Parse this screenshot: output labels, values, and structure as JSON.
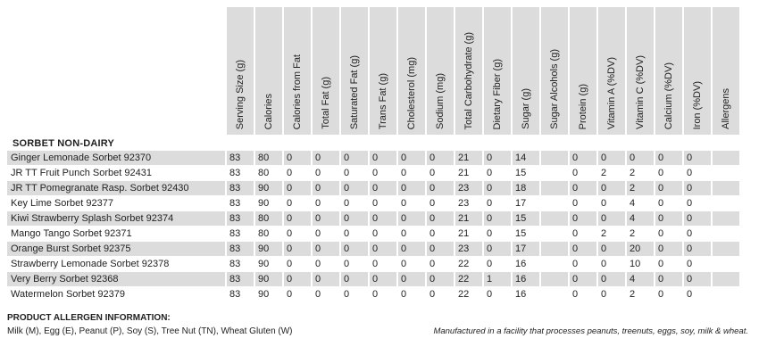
{
  "columns": [
    "Serving Size (g)",
    "Calories",
    "Calories from Fat",
    "Total Fat (g)",
    "Saturated Fat (g)",
    "Trans Fat (g)",
    "Cholesterol (mg)",
    "Sodium (mg)",
    "Total Carbohydrate (g)",
    "Dietary Fiber (g)",
    "Sugar (g)",
    "Sugar Alcohols (g)",
    "Protein (g)",
    "Vitamin A (%DV)",
    "Vitamin C (%DV)",
    "Calcium (%DV)",
    "Iron (%DV)",
    "Allergens"
  ],
  "section_title": "SORBET NON-DAIRY",
  "rows": [
    {
      "name": "Ginger Lemonade Sorbet  92370",
      "values": [
        "83",
        "80",
        "0",
        "0",
        "0",
        "0",
        "0",
        "0",
        "21",
        "0",
        "14",
        "",
        "0",
        "0",
        "0",
        "0",
        "0",
        ""
      ]
    },
    {
      "name": "JR TT Fruit Punch Sorbet  92431",
      "values": [
        "83",
        "80",
        "0",
        "0",
        "0",
        "0",
        "0",
        "0",
        "21",
        "0",
        "15",
        "",
        "0",
        "2",
        "2",
        "0",
        "0",
        ""
      ]
    },
    {
      "name": "JR TT Pomegranate Rasp. Sorbet  92430",
      "values": [
        "83",
        "90",
        "0",
        "0",
        "0",
        "0",
        "0",
        "0",
        "23",
        "0",
        "18",
        "",
        "0",
        "0",
        "2",
        "0",
        "0",
        ""
      ]
    },
    {
      "name": "Key Lime Sorbet 92377",
      "values": [
        "83",
        "90",
        "0",
        "0",
        "0",
        "0",
        "0",
        "0",
        "23",
        "0",
        "17",
        "",
        "0",
        "0",
        "4",
        "0",
        "0",
        ""
      ]
    },
    {
      "name": "Kiwi Strawberry Splash Sorbet 92374",
      "values": [
        "83",
        "80",
        "0",
        "0",
        "0",
        "0",
        "0",
        "0",
        "21",
        "0",
        "15",
        "",
        "0",
        "0",
        "4",
        "0",
        "0",
        ""
      ]
    },
    {
      "name": "Mango Tango Sorbet 92371",
      "values": [
        "83",
        "80",
        "0",
        "0",
        "0",
        "0",
        "0",
        "0",
        "21",
        "0",
        "15",
        "",
        "0",
        "2",
        "2",
        "0",
        "0",
        ""
      ]
    },
    {
      "name": "Orange Burst Sorbet 92375",
      "values": [
        "83",
        "90",
        "0",
        "0",
        "0",
        "0",
        "0",
        "0",
        "23",
        "0",
        "17",
        "",
        "0",
        "0",
        "20",
        "0",
        "0",
        ""
      ]
    },
    {
      "name": "Strawberry Lemonade Sorbet 92378",
      "values": [
        "83",
        "90",
        "0",
        "0",
        "0",
        "0",
        "0",
        "0",
        "22",
        "0",
        "16",
        "",
        "0",
        "0",
        "10",
        "0",
        "0",
        ""
      ]
    },
    {
      "name": "Very Berry Sorbet 92368",
      "values": [
        "83",
        "90",
        "0",
        "0",
        "0",
        "0",
        "0",
        "0",
        "22",
        "1",
        "16",
        "",
        "0",
        "0",
        "4",
        "0",
        "0",
        ""
      ]
    },
    {
      "name": "Watermelon Sorbet 92379",
      "values": [
        "83",
        "90",
        "0",
        "0",
        "0",
        "0",
        "0",
        "0",
        "22",
        "0",
        "16",
        "",
        "0",
        "0",
        "2",
        "0",
        "0",
        ""
      ]
    }
  ],
  "footer": {
    "title": "PRODUCT ALLERGEN INFORMATION:",
    "legend": "Milk (M), Egg (E), Peanut (P), Soy (S), Tree Nut (TN), Wheat Gluten (W)",
    "note": "Manufactured in a facility that processes peanuts, treenuts, eggs, soy, milk & wheat."
  }
}
